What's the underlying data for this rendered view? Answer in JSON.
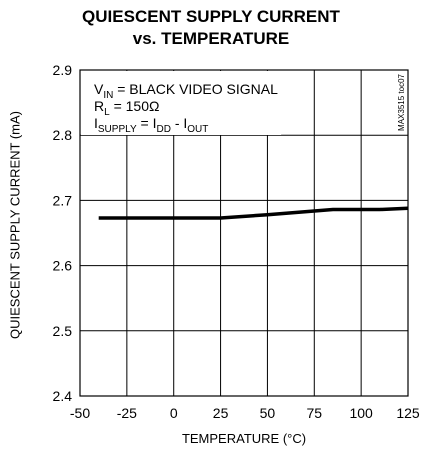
{
  "chart_data": {
    "type": "line",
    "title": [
      "QUIESCENT SUPPLY CURRENT",
      "vs. TEMPERATURE"
    ],
    "xlabel": "TEMPERATURE (°C)",
    "ylabel": "QUIESCENT SUPPLY CURRENT (mA)",
    "xlim": [
      -50,
      125
    ],
    "ylim": [
      2.4,
      2.9
    ],
    "xticks": [
      -50,
      -25,
      0,
      25,
      50,
      75,
      100,
      125
    ],
    "yticks": [
      2.4,
      2.5,
      2.6,
      2.7,
      2.8,
      2.9
    ],
    "grid": true,
    "series": [
      {
        "x": [
          -40,
          -25,
          0,
          25,
          50,
          85,
          110,
          125
        ],
        "values": [
          2.673,
          2.673,
          2.673,
          2.673,
          2.678,
          2.686,
          2.686,
          2.688
        ]
      }
    ],
    "annotations": [
      {
        "parts": [
          [
            "V",
            ""
          ],
          [
            "IN",
            "sub"
          ],
          [
            " = BLACK VIDEO SIGNAL",
            ""
          ]
        ]
      },
      {
        "parts": [
          [
            "R",
            ""
          ],
          [
            "L",
            "sub"
          ],
          [
            " = 150Ω",
            ""
          ]
        ]
      },
      {
        "parts": [
          [
            "I",
            ""
          ],
          [
            "SUPPLY",
            "sub"
          ],
          [
            " = I",
            ""
          ],
          [
            "DD",
            "sub"
          ],
          [
            " - I",
            ""
          ],
          [
            "OUT",
            "sub"
          ]
        ]
      }
    ],
    "figure_code": "MAX3515 toc07"
  }
}
